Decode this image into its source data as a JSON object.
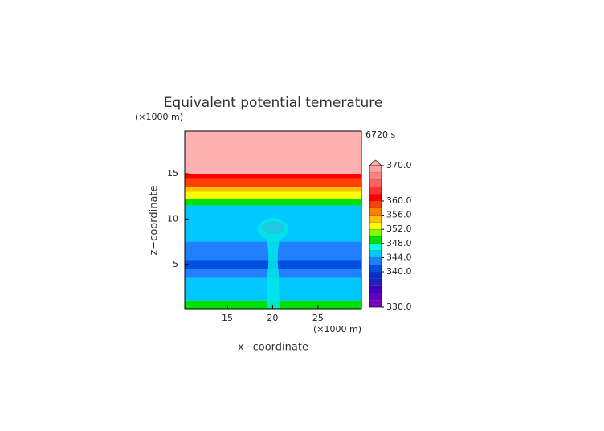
{
  "chart_data": {
    "type": "contour",
    "title": "Equivalent potential temerature",
    "x_label": "x−coordinate",
    "y_label": "z−coordinate",
    "x_unit": "(×1000 m)",
    "y_unit": "(×1000 m)",
    "time_label": "6720 s",
    "xlim": [
      10.3,
      29.8
    ],
    "ylim": [
      0.1,
      19.7
    ],
    "xticks": [
      15,
      20,
      25
    ],
    "yticks": [
      5,
      10,
      15
    ],
    "layers": [
      {
        "z": [
          0.1,
          1.0
        ],
        "value": 349
      },
      {
        "z": [
          1.0,
          3.5
        ],
        "value": 345
      },
      {
        "z": [
          3.5,
          4.5
        ],
        "value": 343
      },
      {
        "z": [
          4.5,
          5.5
        ],
        "value": 341
      },
      {
        "z": [
          5.5,
          7.5
        ],
        "value": 343
      },
      {
        "z": [
          7.5,
          11.5
        ],
        "value": 345
      },
      {
        "z": [
          11.5,
          12.2
        ],
        "value": 349
      },
      {
        "z": [
          12.2,
          13.0
        ],
        "value": 353
      },
      {
        "z": [
          13.0,
          13.5
        ],
        "value": 355
      },
      {
        "z": [
          13.5,
          14.5
        ],
        "value": 359
      },
      {
        "z": [
          14.5,
          15.0
        ],
        "value": 361
      },
      {
        "z": [
          15.0,
          19.7
        ],
        "value": 371
      }
    ],
    "colorbar": {
      "levels": [
        330,
        332,
        334,
        336,
        338,
        340,
        342,
        344,
        346,
        348,
        350,
        352,
        354,
        356,
        358,
        360,
        362,
        364,
        366,
        368,
        370
      ],
      "colors": [
        "#8000c0",
        "#6000c0",
        "#4000c0",
        "#2020c0",
        "#0030d0",
        "#0050e0",
        "#2080ff",
        "#00c8ff",
        "#00ffe0",
        "#00e000",
        "#80ff00",
        "#ffff00",
        "#ffc000",
        "#ff8000",
        "#ff4000",
        "#ff0000",
        "#ff3030",
        "#ff6060",
        "#ff8080",
        "#ffa0a0"
      ],
      "over_color": "#ffb0b0",
      "ticks": [
        {
          "value": 370,
          "label": "370.0"
        },
        {
          "value": 360,
          "label": "360.0"
        },
        {
          "value": 356,
          "label": "356.0"
        },
        {
          "value": 352,
          "label": "352.0"
        },
        {
          "value": 348,
          "label": "348.0"
        },
        {
          "value": 344,
          "label": "344.0"
        },
        {
          "value": 340,
          "label": "340.0"
        },
        {
          "value": 330,
          "label": "330.0"
        }
      ]
    }
  }
}
